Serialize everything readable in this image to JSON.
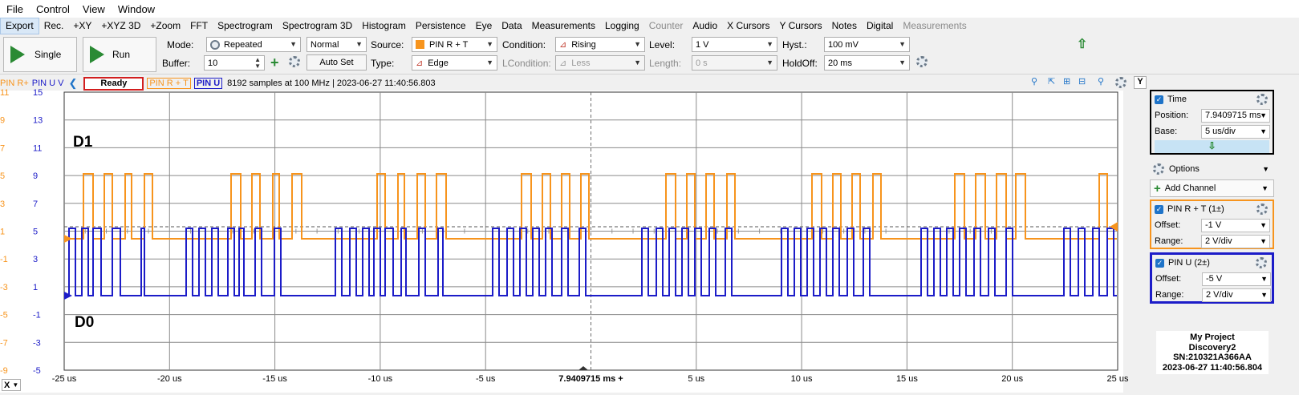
{
  "menubar": [
    "File",
    "Control",
    "View",
    "Window"
  ],
  "tabs": [
    {
      "label": "Export",
      "active": true,
      "disabled": false
    },
    {
      "label": "Rec.",
      "active": false,
      "disabled": false
    },
    {
      "label": "+XY",
      "active": false,
      "disabled": false
    },
    {
      "label": "+XYZ 3D",
      "active": false,
      "disabled": false
    },
    {
      "label": "+Zoom",
      "active": false,
      "disabled": false
    },
    {
      "label": "FFT",
      "active": false,
      "disabled": false
    },
    {
      "label": "Spectrogram",
      "active": false,
      "disabled": false
    },
    {
      "label": "Spectrogram 3D",
      "active": false,
      "disabled": false
    },
    {
      "label": "Histogram",
      "active": false,
      "disabled": false
    },
    {
      "label": "Persistence",
      "active": false,
      "disabled": false
    },
    {
      "label": "Eye",
      "active": false,
      "disabled": false
    },
    {
      "label": "Data",
      "active": false,
      "disabled": false
    },
    {
      "label": "Measurements",
      "active": false,
      "disabled": false
    },
    {
      "label": "Logging",
      "active": false,
      "disabled": false
    },
    {
      "label": "Counter",
      "active": false,
      "disabled": true
    },
    {
      "label": "Audio",
      "active": false,
      "disabled": false
    },
    {
      "label": "X Cursors",
      "active": false,
      "disabled": false
    },
    {
      "label": "Y Cursors",
      "active": false,
      "disabled": false
    },
    {
      "label": "Notes",
      "active": false,
      "disabled": false
    },
    {
      "label": "Digital",
      "active": false,
      "disabled": false
    },
    {
      "label": "Measurements",
      "active": false,
      "disabled": true
    }
  ],
  "toolbar": {
    "single_label": "Single",
    "run_label": "Run",
    "mode_label": "Mode:",
    "mode_value": "Repeated",
    "mode_icon": "repeat-icon",
    "normal_value": "Normal",
    "buffer_label": "Buffer:",
    "buffer_value": "10",
    "source_label": "Source:",
    "source_value": "PIN R + T",
    "source_color": "#f7941d",
    "type_label": "Type:",
    "type_value": "Edge",
    "autoset_label": "Auto Set",
    "condition_label": "Condition:",
    "condition_value": "Rising",
    "lcondition_label": "LCondition:",
    "lcondition_value": "Less",
    "level_label": "Level:",
    "level_value": "1 V",
    "length_label": "Length:",
    "length_value": "0 s",
    "hyst_label": "Hyst.:",
    "hyst_value": "100 mV",
    "holdoff_label": "HoldOff:",
    "holdoff_value": "20 ms"
  },
  "status": {
    "ch1_axis": "PIN R+",
    "ch2_axis": "PIN U V",
    "state": "Ready",
    "ch1": "PIN R + T",
    "ch2": "PIN U",
    "info": "8192 samples at 100 MHz | 2023-06-27 11:40:56.803",
    "y_button": "Y"
  },
  "scope": {
    "ch1_color": "#f7941d",
    "ch2_color": "#1c1cc8",
    "ch1_ticks": [
      "11",
      "9",
      "7",
      "5",
      "3",
      "1",
      "-1",
      "-3",
      "-5",
      "-7",
      "-9"
    ],
    "ch2_ticks": [
      "15",
      "13",
      "11",
      "9",
      "7",
      "5",
      "3",
      "1",
      "-1",
      "-3",
      "-5"
    ],
    "time_ticks": [
      "-25 us",
      "-20 us",
      "-15 us",
      "-10 us",
      "-5 us",
      "7.9409715 ms +",
      "5 us",
      "10 us",
      "15 us",
      "20 us",
      "25 us"
    ],
    "label_d1": "D1",
    "label_d0": "D0",
    "x_button": "X"
  },
  "panel": {
    "time_title": "Time",
    "position_label": "Position:",
    "position_value": "7.9409715 ms",
    "base_label": "Base:",
    "base_value": "5 us/div",
    "options_label": "Options",
    "add_channel_label": "Add Channel",
    "ch1_title": "PIN R + T (1±)",
    "ch1_offset_label": "Offset:",
    "ch1_offset_value": "-1 V",
    "ch1_range_label": "Range:",
    "ch1_range_value": "2 V/div",
    "ch2_title": "PIN U (2±)",
    "ch2_offset_label": "Offset:",
    "ch2_offset_value": "-5 V",
    "ch2_range_label": "Range:",
    "ch2_range_value": "2 V/div",
    "device_project": "My Project",
    "device_name": "Discovery2",
    "device_sn": "SN:210321A366AA",
    "device_time": "2023-06-27 11:40:56.804"
  }
}
